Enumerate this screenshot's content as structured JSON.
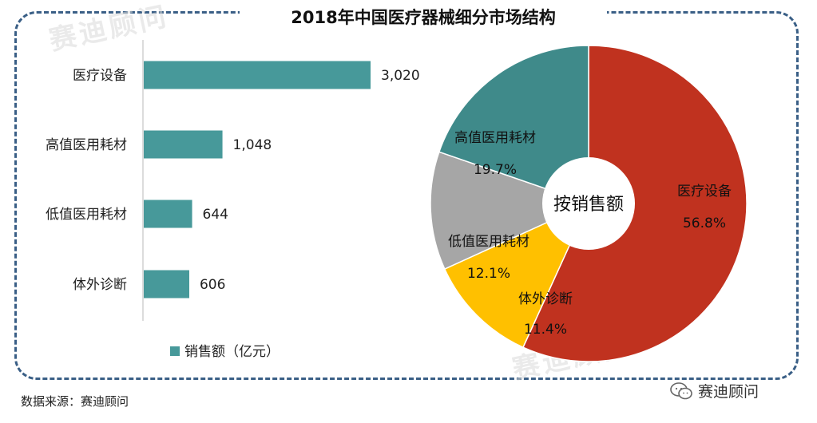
{
  "title": "2018年中国医疗器械细分市场结构",
  "source": "数据来源：赛迪顾问",
  "brand": "赛迪顾问",
  "watermark": [
    "赛迪顾问",
    "赛迪顾问"
  ],
  "colors": {
    "bar": "#47999a",
    "pie": [
      "#c0321f",
      "#ffc000",
      "#a6a6a6",
      "#3f8a8a"
    ],
    "frame": "#3a5f86"
  },
  "chart_data": [
    {
      "type": "bar",
      "orientation": "horizontal",
      "title": "",
      "categories": [
        "医疗设备",
        "高值医用耗材",
        "低值医用耗材",
        "体外诊断"
      ],
      "values": [
        3020,
        1048,
        644,
        606
      ],
      "value_labels": [
        "3,020",
        "1,048",
        "644",
        "606"
      ],
      "legend": "销售额（亿元）",
      "xlim": [
        0,
        3020
      ]
    },
    {
      "type": "pie",
      "style": "donut",
      "center_label": "按销售额",
      "slices": [
        {
          "name": "医疗设备",
          "value": 56.8,
          "label": "56.8%"
        },
        {
          "name": "体外诊断",
          "value": 11.4,
          "label": "11.4%"
        },
        {
          "name": "低值医用耗材",
          "value": 12.1,
          "label": "12.1%"
        },
        {
          "name": "高值医用耗材",
          "value": 19.7,
          "label": "19.7%"
        }
      ]
    }
  ]
}
